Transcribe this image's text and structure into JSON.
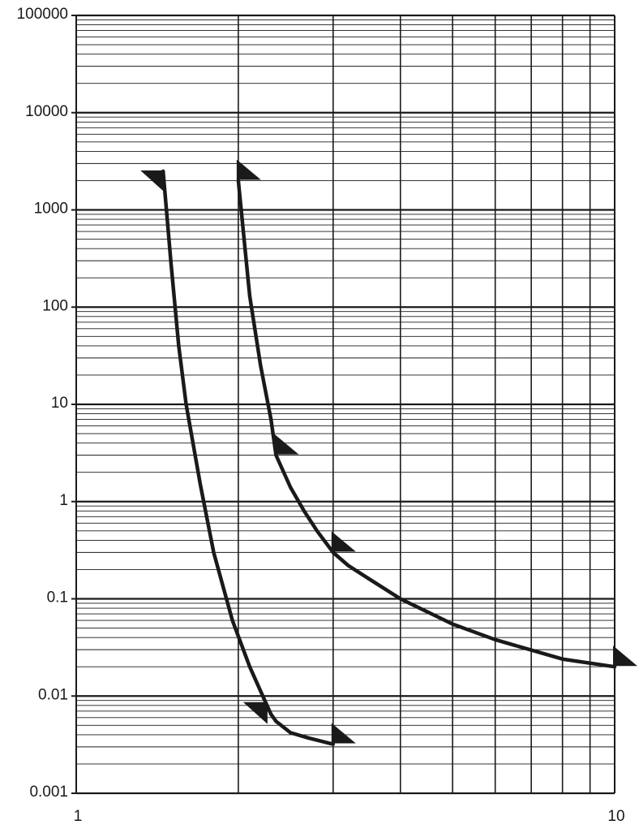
{
  "chart_data": {
    "type": "line",
    "title": "",
    "xlabel": "",
    "ylabel": "",
    "x_scale": "log",
    "y_scale": "log",
    "xlim": [
      1,
      10
    ],
    "ylim": [
      0.001,
      100000
    ],
    "grid": true,
    "x_ticks": [
      1,
      10
    ],
    "x_tick_labels": [
      "1",
      "10"
    ],
    "y_ticks": [
      0.001,
      0.01,
      0.1,
      1,
      10,
      100,
      1000,
      10000,
      100000
    ],
    "y_tick_labels": [
      "0.001",
      "0.01",
      "0.1",
      "1",
      "10",
      "100",
      "1000",
      "10000",
      "100000"
    ],
    "series": [
      {
        "points": [
          [
            1.45,
            2500
          ],
          [
            1.5,
            280
          ],
          [
            1.55,
            40
          ],
          [
            1.6,
            10
          ],
          [
            1.7,
            1.5
          ],
          [
            1.8,
            0.3
          ],
          [
            1.95,
            0.06
          ],
          [
            2.1,
            0.02
          ],
          [
            2.25,
            0.0085
          ],
          [
            2.3,
            0.0065
          ],
          [
            2.35,
            0.0055
          ],
          [
            2.5,
            0.0042
          ],
          [
            2.7,
            0.0037
          ],
          [
            3.0,
            0.0032
          ]
        ],
        "markers": [
          {
            "x": 1.45,
            "y": 2500,
            "direction": "left"
          },
          {
            "x": 2.25,
            "y": 0.0085,
            "direction": "left"
          },
          {
            "x": 3.0,
            "y": 0.0032,
            "direction": "right"
          }
        ]
      },
      {
        "points": [
          [
            2.0,
            2000
          ],
          [
            2.05,
            500
          ],
          [
            2.1,
            130
          ],
          [
            2.2,
            25
          ],
          [
            2.3,
            7
          ],
          [
            2.35,
            3
          ],
          [
            2.5,
            1.4
          ],
          [
            2.65,
            0.8
          ],
          [
            2.8,
            0.5
          ],
          [
            3.0,
            0.3
          ],
          [
            3.2,
            0.22
          ],
          [
            3.5,
            0.16
          ],
          [
            4.0,
            0.1
          ],
          [
            5.0,
            0.055
          ],
          [
            6.0,
            0.038
          ],
          [
            8.0,
            0.024
          ],
          [
            10.0,
            0.02
          ]
        ],
        "markers": [
          {
            "x": 2.0,
            "y": 2000,
            "direction": "right"
          },
          {
            "x": 2.35,
            "y": 3,
            "direction": "right"
          },
          {
            "x": 3.0,
            "y": 0.3,
            "direction": "right"
          },
          {
            "x": 10.0,
            "y": 0.02,
            "direction": "right"
          }
        ]
      }
    ]
  }
}
